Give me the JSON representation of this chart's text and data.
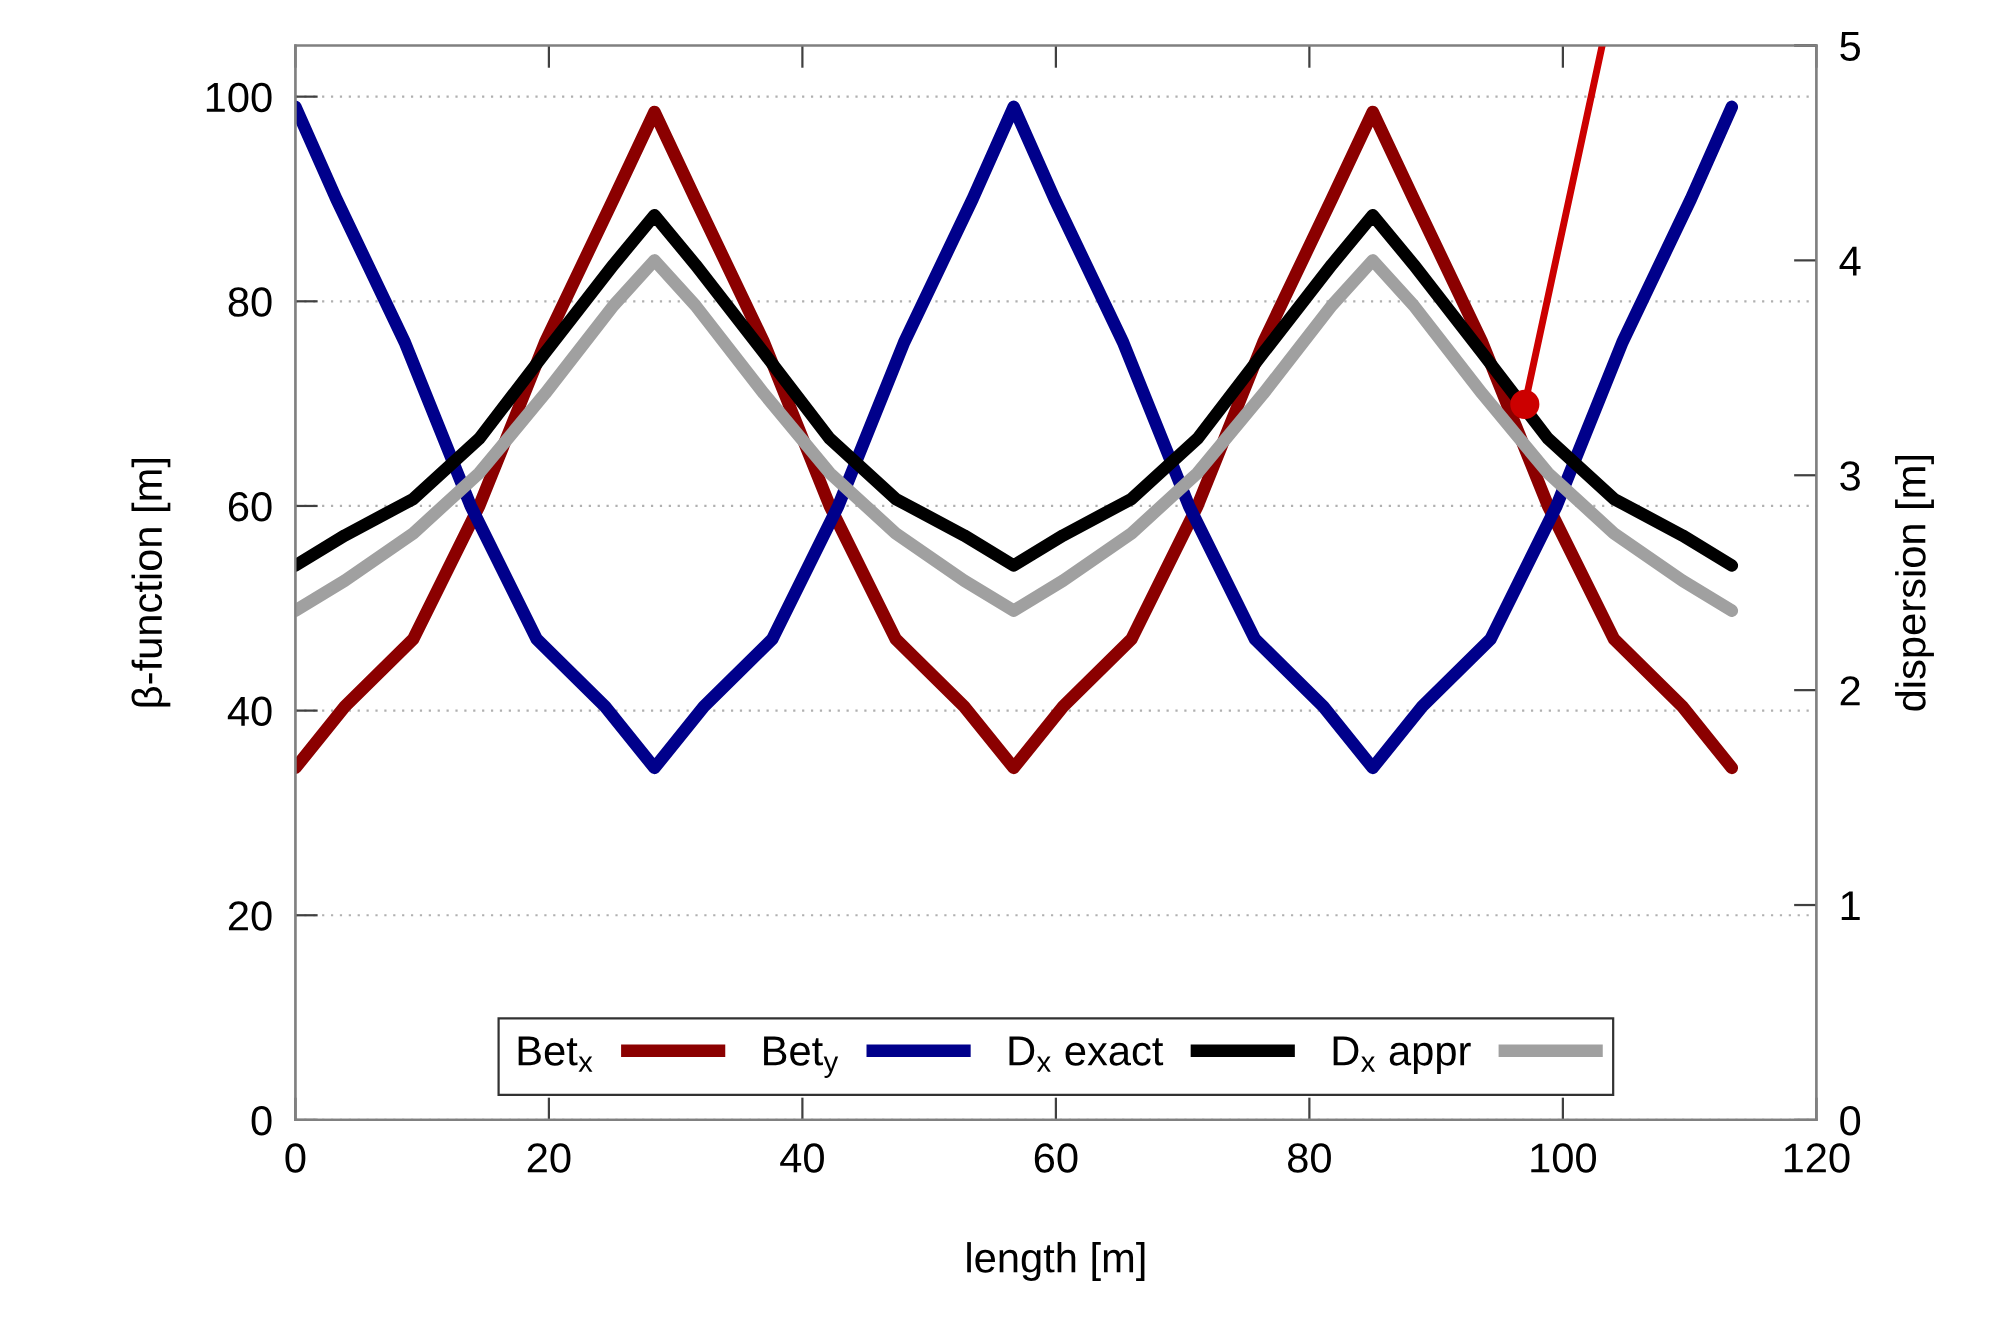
{
  "chart_data": {
    "type": "line",
    "xlabel": "length [m]",
    "ylabel": "β-function [m]",
    "y2label": "dispersion [m]",
    "xlim": [
      0,
      120
    ],
    "xticks": [
      0,
      20,
      40,
      60,
      80,
      100,
      120
    ],
    "ylim": [
      0,
      105
    ],
    "yticks": [
      0,
      20,
      40,
      60,
      80,
      100
    ],
    "y2lim": [
      0,
      5
    ],
    "y2ticks": [
      0,
      1,
      2,
      3,
      4,
      5
    ],
    "grid": "y",
    "legend": "bottom",
    "marker": "none",
    "line_style": "solid",
    "series": [
      {
        "name": "Bet$_{x}$",
        "color": "#8b0000",
        "x": [
          0,
          3.9,
          9.3,
          14.5,
          19.7,
          25.1,
          28.33,
          31.56,
          36.96,
          42.16,
          47.36,
          52.76,
          56.67,
          60.57,
          65.97,
          71.17,
          76.37,
          81.77,
          85,
          88.23,
          93.63,
          98.83,
          104.03,
          109.43,
          113.33
        ],
        "values": [
          34.4,
          40.4,
          47,
          60,
          76,
          90,
          98.5,
          90,
          76,
          60,
          47,
          40.4,
          34.4,
          40.4,
          47,
          60,
          76,
          90,
          98.5,
          90,
          76,
          60,
          47,
          40.4,
          34.4
        ]
      },
      {
        "name": "Bet$_{y}$",
        "color": "#00008b",
        "x": [
          0,
          3.23,
          8.63,
          13.83,
          19.03,
          24.43,
          28.33,
          32.23,
          37.63,
          42.83,
          48.03,
          53.43,
          56.67,
          59.9,
          65.3,
          70.5,
          75.7,
          81.1,
          85,
          88.9,
          94.3,
          99.5,
          104.7,
          110.1,
          113.33
        ],
        "values": [
          99,
          90,
          76,
          60,
          47,
          40.4,
          34.4,
          40.4,
          47,
          60,
          76,
          90,
          99,
          90,
          76,
          60,
          47,
          40.4,
          34.4,
          40.4,
          47,
          60,
          76,
          90,
          99
        ]
      },
      {
        "name": "D$_{x}$ exact",
        "color": "#000000",
        "axis": "y2",
        "x": [
          0,
          3.9,
          9.3,
          14.5,
          19.7,
          25.1,
          28.33,
          31.56,
          36.96,
          42.16,
          47.36,
          52.76,
          56.67,
          60.57,
          65.97,
          71.17,
          76.37,
          81.77,
          85,
          88.23,
          93.63,
          98.83,
          104.03,
          109.43,
          113.33
        ],
        "values": [
          2.58,
          2.72,
          2.89,
          3.17,
          3.57,
          3.98,
          4.21,
          3.98,
          3.57,
          3.17,
          2.89,
          2.72,
          2.58,
          2.72,
          2.89,
          3.17,
          3.57,
          3.98,
          4.21,
          3.98,
          3.57,
          3.17,
          2.89,
          2.72,
          2.58
        ]
      },
      {
        "type": "line",
        "color": "#cc0000",
        "axis": "y2",
        "x": [
          97,
          103.1
        ],
        "values": [
          3.33,
          5.0
        ]
      },
      {
        "type": "scatter",
        "color": "#cc0000",
        "axis": "y2",
        "marker": "circle",
        "x": [
          97
        ],
        "values": [
          3.33
        ]
      },
      {
        "name": "D$_{x}$ appr",
        "color": "#a0a0a0",
        "axis": "y2",
        "x": [
          0,
          3.9,
          9.3,
          14.5,
          19.7,
          25.1,
          28.33,
          31.56,
          36.96,
          42.16,
          47.36,
          52.76,
          56.67,
          60.57,
          65.97,
          71.17,
          76.37,
          81.77,
          85,
          88.23,
          93.63,
          98.83,
          104.03,
          109.43,
          113.33
        ],
        "values": [
          2.37,
          2.51,
          2.73,
          3.01,
          3.38,
          3.79,
          4.0,
          3.79,
          3.38,
          3.01,
          2.73,
          2.51,
          2.37,
          2.51,
          2.73,
          3.01,
          3.38,
          3.79,
          4.0,
          3.79,
          3.38,
          3.01,
          2.73,
          2.51,
          2.37
        ]
      }
    ]
  }
}
